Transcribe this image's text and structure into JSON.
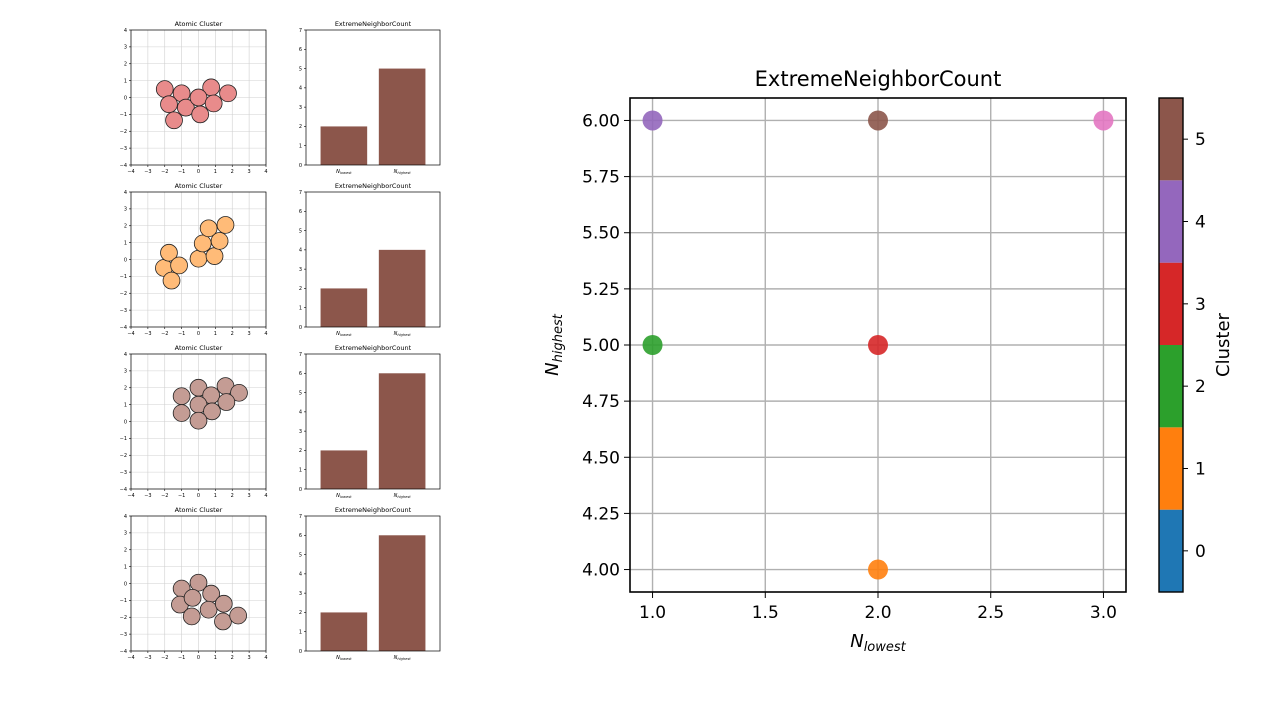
{
  "chart_data": [
    {
      "type": "scatter",
      "title": "Atomic Cluster",
      "xlim": [
        -4,
        4
      ],
      "ylim": [
        -4,
        4
      ],
      "grid": true,
      "xticks": [
        -4,
        -3,
        -2,
        -1,
        0,
        1,
        2,
        3,
        4
      ],
      "yticks": [
        -4,
        -3,
        -2,
        -1,
        0,
        1,
        2,
        3,
        4
      ],
      "marker_color": "#e88b8b",
      "points": [
        [
          -2.0,
          0.5
        ],
        [
          -1.0,
          0.25
        ],
        [
          0.75,
          0.6
        ],
        [
          1.75,
          0.25
        ],
        [
          -1.75,
          -0.4
        ],
        [
          -0.75,
          -0.6
        ],
        [
          0.0,
          0.0
        ],
        [
          0.9,
          -0.35
        ],
        [
          -1.45,
          -1.35
        ],
        [
          0.1,
          -1.0
        ]
      ]
    },
    {
      "type": "bar",
      "title": "ExtremeNeighborCount",
      "categories": [
        "lowest",
        "highest"
      ],
      "values": [
        2,
        5
      ],
      "ylim": [
        0,
        7
      ],
      "yticks": [
        0,
        1,
        2,
        3,
        4,
        5,
        6,
        7
      ],
      "bar_color": "#8c564b"
    },
    {
      "type": "scatter",
      "title": "Atomic Cluster",
      "xlim": [
        -4,
        4
      ],
      "ylim": [
        -4,
        4
      ],
      "grid": true,
      "xticks": [
        -4,
        -3,
        -2,
        -1,
        0,
        1,
        2,
        3,
        4
      ],
      "yticks": [
        -4,
        -3,
        -2,
        -1,
        0,
        1,
        2,
        3,
        4
      ],
      "marker_color": "#ffbb78",
      "points": [
        [
          -2.05,
          -0.5
        ],
        [
          -1.75,
          0.4
        ],
        [
          -1.15,
          -0.35
        ],
        [
          -1.6,
          -1.25
        ],
        [
          0.0,
          0.05
        ],
        [
          0.25,
          0.95
        ],
        [
          0.6,
          1.85
        ],
        [
          0.95,
          0.2
        ],
        [
          1.25,
          1.1
        ],
        [
          1.6,
          2.05
        ]
      ]
    },
    {
      "type": "bar",
      "title": "ExtremeNeighborCount",
      "categories": [
        "lowest",
        "highest"
      ],
      "values": [
        2,
        4
      ],
      "ylim": [
        0,
        7
      ],
      "yticks": [
        0,
        1,
        2,
        3,
        4,
        5,
        6,
        7
      ],
      "bar_color": "#8c564b"
    },
    {
      "type": "scatter",
      "title": "Atomic Cluster",
      "xlim": [
        -4,
        4
      ],
      "ylim": [
        -4,
        4
      ],
      "grid": true,
      "xticks": [
        -4,
        -3,
        -2,
        -1,
        0,
        1,
        2,
        3,
        4
      ],
      "yticks": [
        -4,
        -3,
        -2,
        -1,
        0,
        1,
        2,
        3,
        4
      ],
      "marker_color": "#c49c94",
      "points": [
        [
          -1.0,
          1.5
        ],
        [
          0.0,
          2.0
        ],
        [
          0.75,
          1.55
        ],
        [
          1.6,
          2.1
        ],
        [
          2.4,
          1.7
        ],
        [
          -1.0,
          0.5
        ],
        [
          0.0,
          1.0
        ],
        [
          0.8,
          0.6
        ],
        [
          1.65,
          1.15
        ],
        [
          0.0,
          0.05
        ]
      ]
    },
    {
      "type": "bar",
      "title": "ExtremeNeighborCount",
      "categories": [
        "lowest",
        "highest"
      ],
      "values": [
        2,
        6
      ],
      "ylim": [
        0,
        7
      ],
      "yticks": [
        0,
        1,
        2,
        3,
        4,
        5,
        6,
        7
      ],
      "bar_color": "#8c564b"
    },
    {
      "type": "scatter",
      "title": "Atomic Cluster",
      "xlim": [
        -4,
        4
      ],
      "ylim": [
        -4,
        4
      ],
      "grid": true,
      "xticks": [
        -4,
        -3,
        -2,
        -1,
        0,
        1,
        2,
        3,
        4
      ],
      "yticks": [
        -4,
        -3,
        -2,
        -1,
        0,
        1,
        2,
        3,
        4
      ],
      "marker_color": "#c49c94",
      "points": [
        [
          -1.0,
          -0.3
        ],
        [
          0.0,
          0.05
        ],
        [
          0.75,
          -0.6
        ],
        [
          -1.1,
          -1.25
        ],
        [
          -0.35,
          -0.85
        ],
        [
          0.6,
          -1.55
        ],
        [
          1.5,
          -1.2
        ],
        [
          -0.4,
          -1.95
        ],
        [
          1.45,
          -2.25
        ],
        [
          2.35,
          -1.9
        ]
      ]
    },
    {
      "type": "bar",
      "title": "ExtremeNeighborCount",
      "categories": [
        "lowest",
        "highest"
      ],
      "values": [
        2,
        6
      ],
      "ylim": [
        0,
        7
      ],
      "yticks": [
        0,
        1,
        2,
        3,
        4,
        5,
        6,
        7
      ],
      "bar_color": "#8c564b"
    },
    {
      "type": "scatter",
      "title": "ExtremeNeighborCount",
      "xlabel_base": "N",
      "xlabel_sub": "lowest",
      "ylabel_base": "N",
      "ylabel_sub": "highest",
      "xlim": [
        0.9,
        3.1
      ],
      "ylim": [
        3.9,
        6.1
      ],
      "grid": true,
      "xticks": [
        1.0,
        1.5,
        2.0,
        2.5,
        3.0
      ],
      "xtick_labels": [
        "1.0",
        "1.5",
        "2.0",
        "2.5",
        "3.0"
      ],
      "yticks": [
        4.0,
        4.25,
        4.5,
        4.75,
        5.0,
        5.25,
        5.5,
        5.75,
        6.0
      ],
      "ytick_labels": [
        "4.00",
        "4.25",
        "4.50",
        "4.75",
        "5.00",
        "5.25",
        "5.50",
        "5.75",
        "6.00"
      ],
      "points": [
        {
          "x": 1,
          "y": 6,
          "cluster": 4
        },
        {
          "x": 2,
          "y": 6,
          "cluster": 5
        },
        {
          "x": 3,
          "y": 6,
          "cluster": 6
        },
        {
          "x": 1,
          "y": 5,
          "cluster": 2
        },
        {
          "x": 2,
          "y": 5,
          "cluster": 3
        },
        {
          "x": 2,
          "y": 4,
          "cluster": 1
        }
      ],
      "point_colors": {
        "1": "#ff7f0e",
        "2": "#2ca02c",
        "3": "#d62728",
        "4": "#9467bd",
        "5": "#8c564b",
        "6": "#e377c2"
      },
      "colorbar": {
        "label": "Cluster",
        "range": [
          -0.5,
          5.5
        ],
        "segments": [
          {
            "value": 0,
            "label": "0",
            "color": "#1f77b4"
          },
          {
            "value": 1,
            "label": "1",
            "color": "#ff7f0e"
          },
          {
            "value": 2,
            "label": "2",
            "color": "#2ca02c"
          },
          {
            "value": 3,
            "label": "3",
            "color": "#d62728"
          },
          {
            "value": 4,
            "label": "4",
            "color": "#9467bd"
          },
          {
            "value": 5,
            "label": "5",
            "color": "#8c564b"
          }
        ]
      }
    }
  ]
}
